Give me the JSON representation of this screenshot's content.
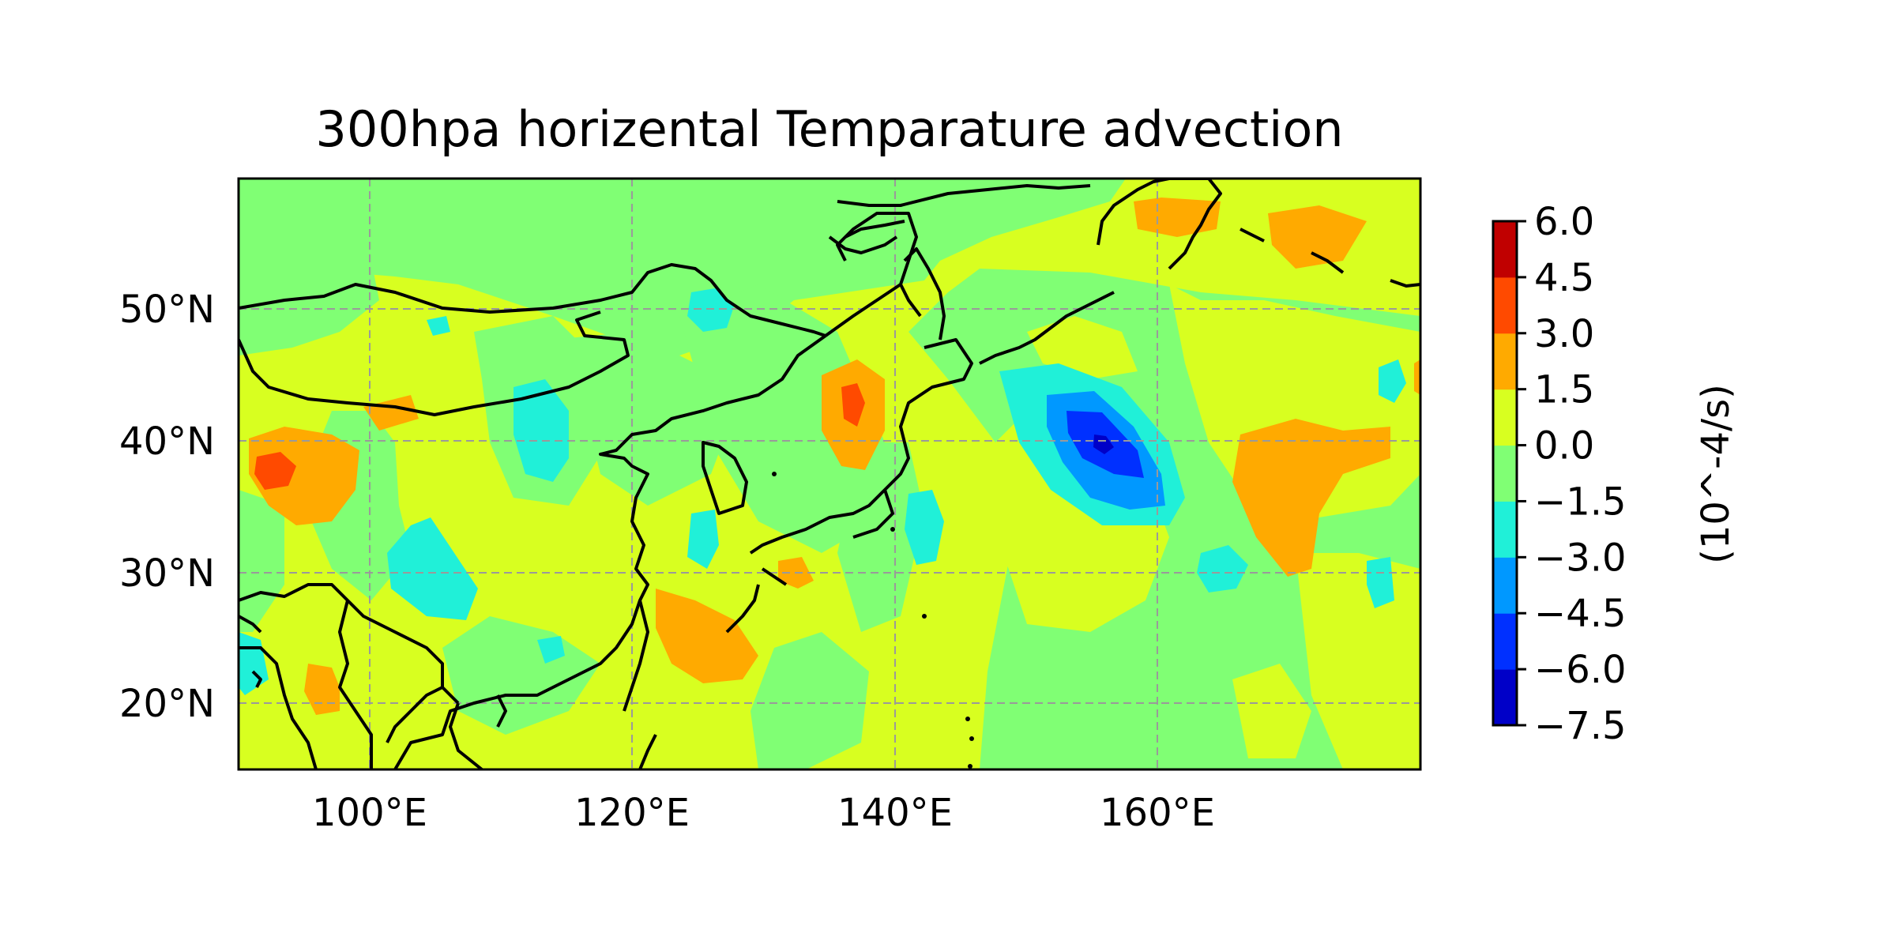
{
  "title": "300hpa horizental Temparature advection",
  "map": {
    "lon_range": [
      90,
      180
    ],
    "lat_range": [
      15,
      60
    ],
    "x_ticks": [
      {
        "value": 100,
        "label": "100°E"
      },
      {
        "value": 120,
        "label": "120°E"
      },
      {
        "value": 140,
        "label": "140°E"
      },
      {
        "value": 160,
        "label": "160°E"
      }
    ],
    "y_ticks": [
      {
        "value": 50,
        "label": "50°N"
      },
      {
        "value": 40,
        "label": "40°N"
      },
      {
        "value": 30,
        "label": "30°N"
      },
      {
        "value": 20,
        "label": "20°N"
      }
    ],
    "gridlines": true,
    "coastlines": true
  },
  "colorbar": {
    "label": "(10^-4/s)",
    "levels": [
      -7.5,
      -6.0,
      -4.5,
      -3.0,
      -1.5,
      0.0,
      1.5,
      3.0,
      4.5,
      6.0
    ],
    "tick_labels": [
      "−7.5",
      "−6.0",
      "−4.5",
      "−3.0",
      "−1.5",
      "0.0",
      "1.5",
      "3.0",
      "4.5",
      "6.0"
    ],
    "colors": [
      "#0000c8",
      "#0030ff",
      "#0098ff",
      "#20f0d8",
      "#80ff74",
      "#d8ff20",
      "#ffaa00",
      "#ff4a00",
      "#c00000"
    ]
  },
  "chart_data": {
    "type": "heatmap",
    "title": "300hpa horizental Temparature advection",
    "x_ticks": [
      "100°E",
      "120°E",
      "140°E",
      "160°E"
    ],
    "y_ticks": [
      "50°N",
      "40°N",
      "30°N",
      "20°N"
    ],
    "colorbar_label": "(10^-4/s)",
    "levels": [
      -7.5,
      -6.0,
      -4.5,
      -3.0,
      -1.5,
      0.0,
      1.5,
      3.0,
      4.5,
      6.0
    ],
    "features": [
      {
        "lon": 155,
        "lat": 39,
        "value": -6.5
      },
      {
        "lon": 92,
        "lat": 37.5,
        "value": 4.8
      },
      {
        "lon": 136,
        "lat": 42,
        "value": 4.6
      },
      {
        "lon": 170,
        "lat": 35,
        "value": 3.4
      },
      {
        "lon": 169,
        "lat": 56,
        "value": 3.2
      },
      {
        "lon": 124,
        "lat": 24,
        "value": 3.0
      }
    ]
  }
}
